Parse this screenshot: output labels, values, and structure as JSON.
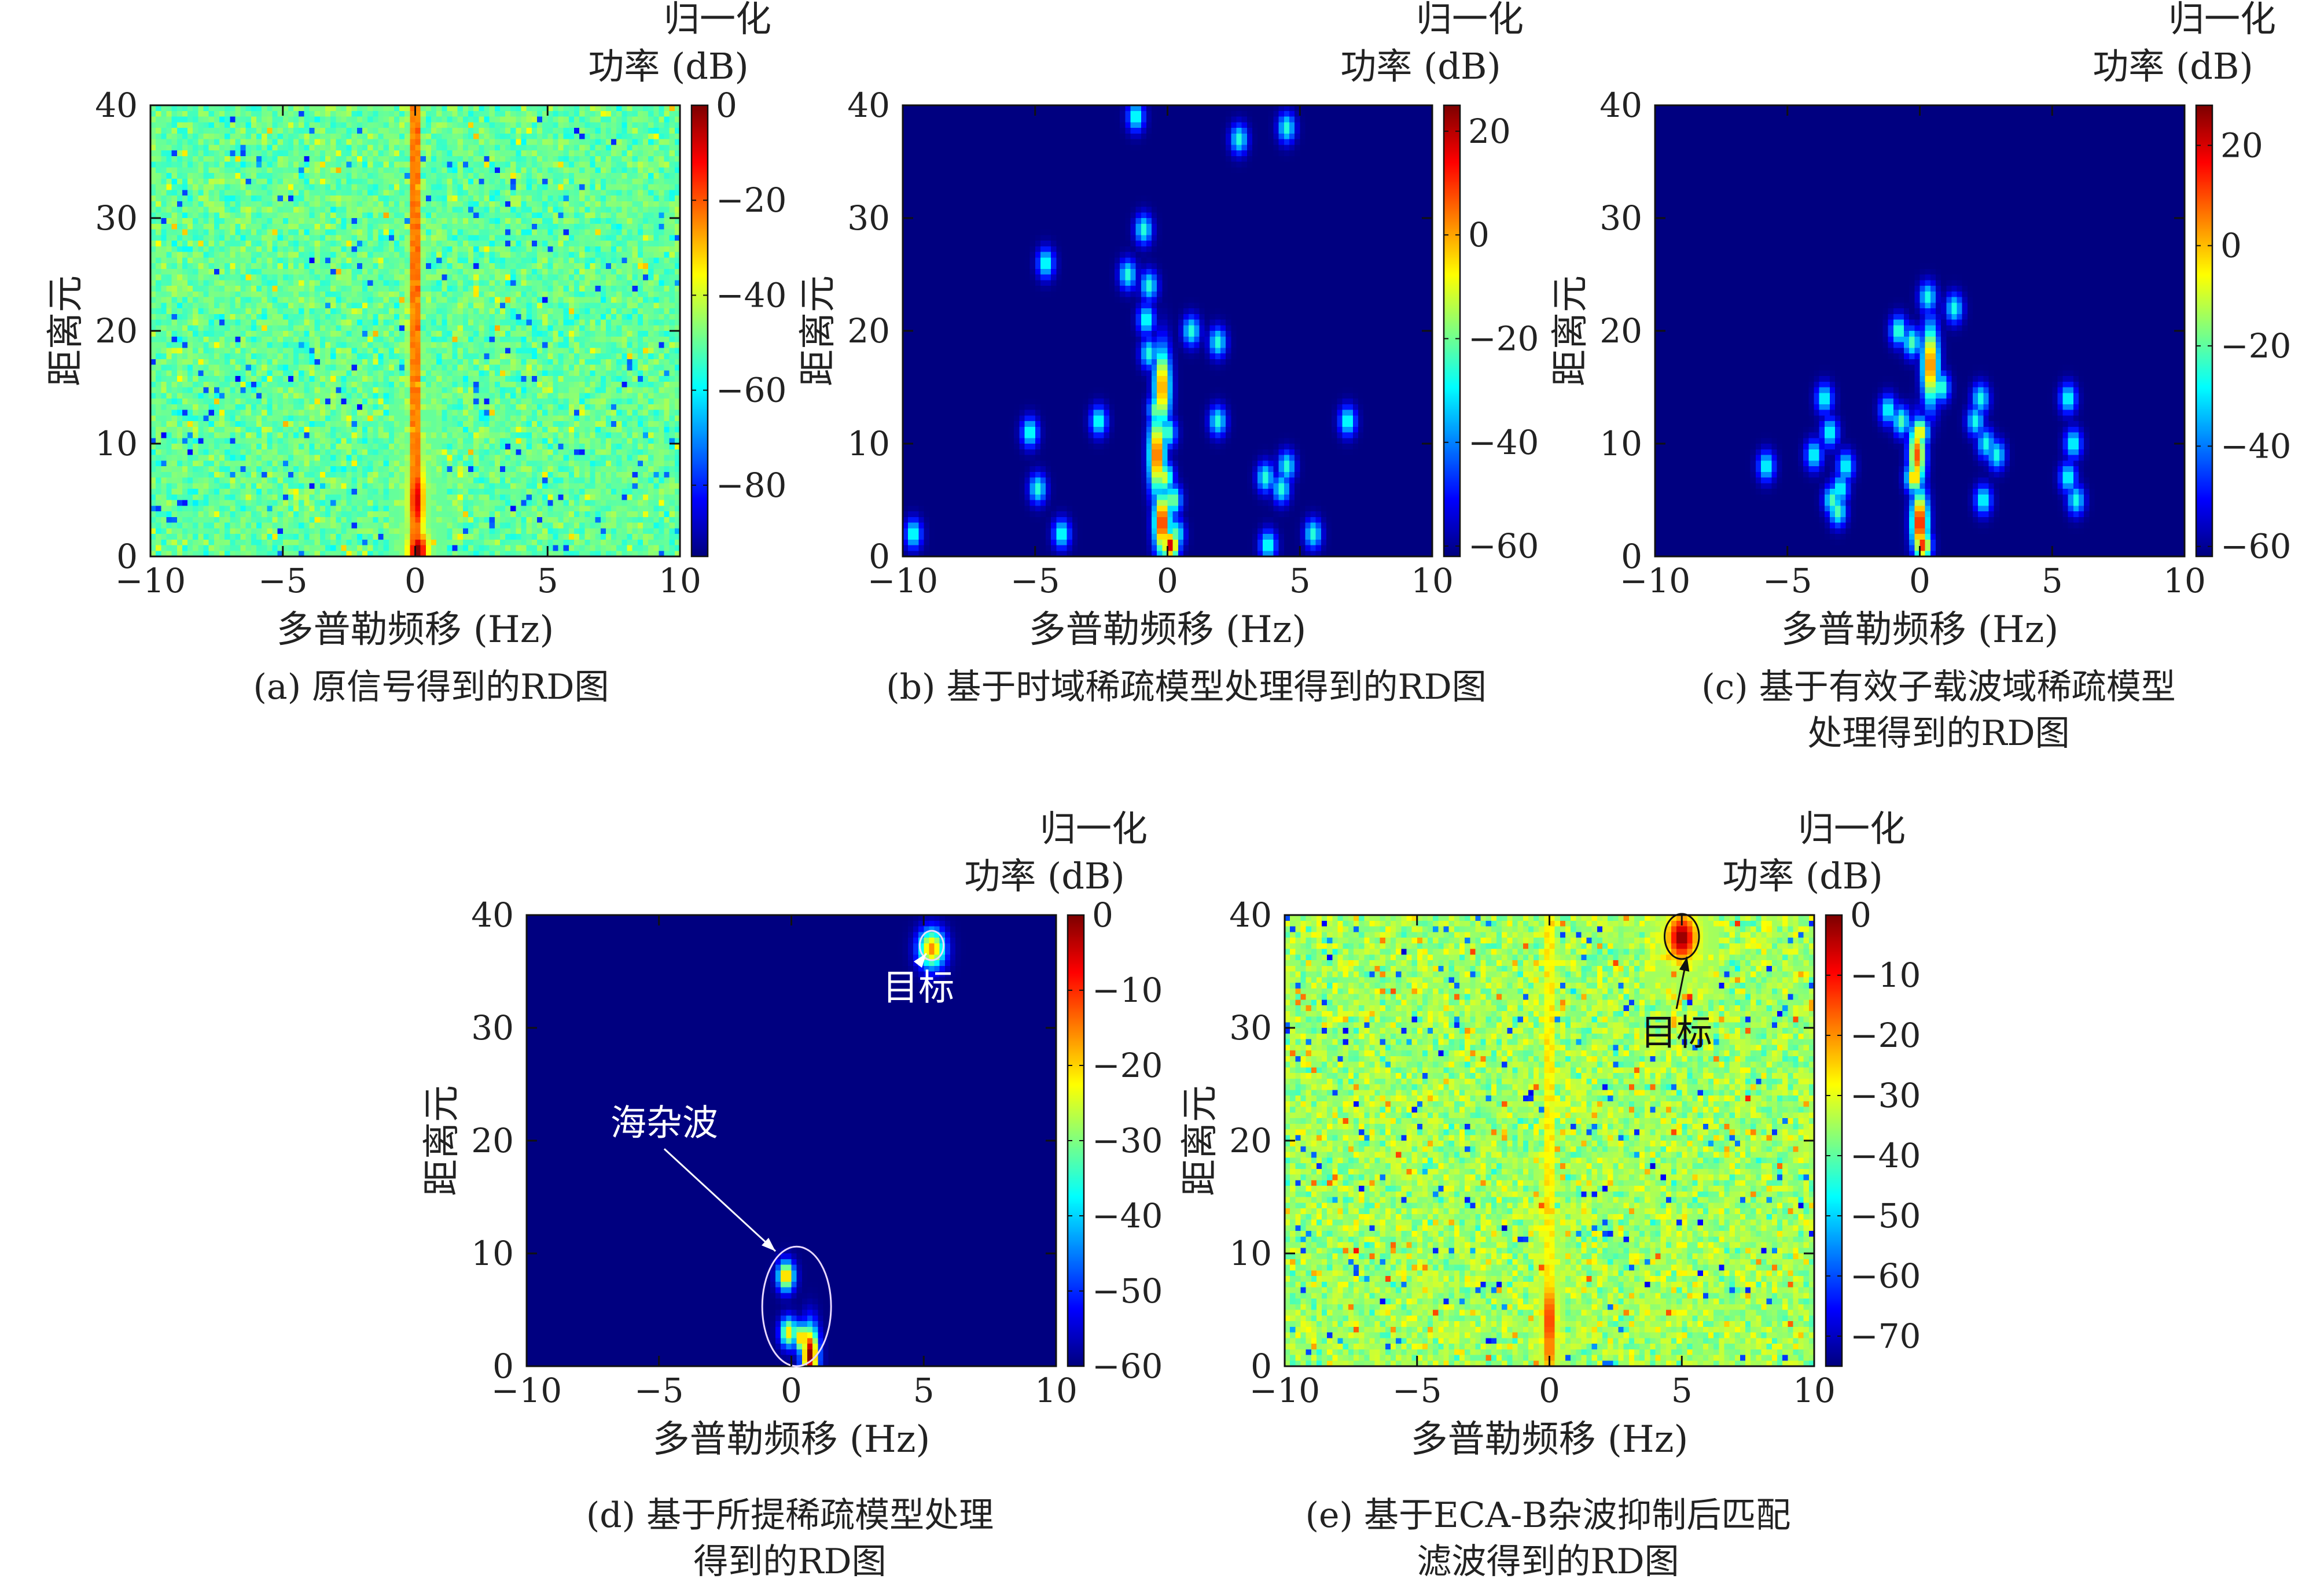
{
  "figure": {
    "panels": [
      {
        "caption_lines": [
          "(a) 原信号得到的RD图"
        ]
      },
      {
        "caption_lines": [
          "(b) 基于时域稀疏模型处理得到的RD图"
        ]
      },
      {
        "caption_lines": [
          "(c) 基于有效子载波域稀疏模型",
          "处理得到的RD图"
        ]
      },
      {
        "caption_lines": [
          "(d) 基于所提稀疏模型处理",
          "得到的RD图"
        ]
      },
      {
        "caption_lines": [
          "(e) 基于ECA-B杂波抑制后匹配",
          "滤波得到的RD图"
        ]
      }
    ]
  },
  "chart_data": [
    {
      "type": "heatmap",
      "xlabel": "多普勒频移 (Hz)",
      "ylabel": "距离元",
      "xlim": [
        -10,
        10
      ],
      "ylim": [
        0,
        40
      ],
      "xticks": [
        -10,
        -5,
        0,
        5,
        10
      ],
      "yticks": [
        0,
        10,
        20,
        30,
        40
      ],
      "colorbar": {
        "title_lines": [
          "归一化",
          "功率 (dB)"
        ],
        "range": [
          -95,
          0
        ],
        "ticks": [
          0,
          -20,
          -40,
          -60,
          -80
        ]
      },
      "background": "noise",
      "noise_level_db": -50,
      "ridge": {
        "doppler_hz": 0.0,
        "level_db": -15
      },
      "peaks": [
        {
          "doppler": 0.1,
          "range": 0.5,
          "level": 0,
          "w": 0.25,
          "h": 1.2
        },
        {
          "doppler": 0.05,
          "range": 5,
          "level": -8,
          "w": 0.2,
          "h": 2.5
        }
      ]
    },
    {
      "type": "heatmap",
      "xlabel": "多普勒频移 (Hz)",
      "ylabel": "距离元",
      "xlim": [
        -10,
        10
      ],
      "ylim": [
        0,
        40
      ],
      "xticks": [
        -10,
        -5,
        0,
        5,
        10
      ],
      "yticks": [
        0,
        10,
        20,
        30,
        40
      ],
      "colorbar": {
        "title_lines": [
          "归一化",
          "功率 (dB)"
        ],
        "range": [
          -62,
          25
        ],
        "ticks": [
          20,
          0,
          -20,
          -40,
          -60
        ]
      },
      "background": "flat",
      "noise_level_db": -62,
      "peaks": [
        {
          "doppler": -1.2,
          "range": 39,
          "level": -25
        },
        {
          "doppler": 2.7,
          "range": 37,
          "level": -25
        },
        {
          "doppler": 4.5,
          "range": 38,
          "level": -25
        },
        {
          "doppler": -0.9,
          "range": 29,
          "level": -25
        },
        {
          "doppler": -4.6,
          "range": 26,
          "level": -25
        },
        {
          "doppler": -1.5,
          "range": 25,
          "level": -25
        },
        {
          "doppler": -0.7,
          "range": 24,
          "level": -25
        },
        {
          "doppler": -0.8,
          "range": 21,
          "level": -25
        },
        {
          "doppler": 0.9,
          "range": 20,
          "level": -25
        },
        {
          "doppler": 1.9,
          "range": 19,
          "level": -25
        },
        {
          "doppler": -0.7,
          "range": 18,
          "level": -25
        },
        {
          "doppler": -0.2,
          "range": 15,
          "level": 5,
          "h": 2.5
        },
        {
          "doppler": -0.4,
          "range": 13,
          "level": -15
        },
        {
          "doppler": -2.6,
          "range": 12,
          "level": -25
        },
        {
          "doppler": -5.2,
          "range": 11,
          "level": -25
        },
        {
          "doppler": 0.0,
          "range": 11,
          "level": -20
        },
        {
          "doppler": 1.9,
          "range": 12,
          "level": -25
        },
        {
          "doppler": 6.8,
          "range": 12,
          "level": -25
        },
        {
          "doppler": -0.4,
          "range": 9,
          "level": 10,
          "h": 2.5
        },
        {
          "doppler": -0.1,
          "range": 7,
          "level": -10
        },
        {
          "doppler": 4.5,
          "range": 8,
          "level": -25
        },
        {
          "doppler": 3.7,
          "range": 7,
          "level": -25
        },
        {
          "doppler": 4.3,
          "range": 6,
          "level": -25
        },
        {
          "doppler": -4.9,
          "range": 6,
          "level": -25
        },
        {
          "doppler": 0.2,
          "range": 5,
          "level": -15
        },
        {
          "doppler": -0.2,
          "range": 3,
          "level": 15,
          "h": 2
        },
        {
          "doppler": 0.3,
          "range": 2,
          "level": -20
        },
        {
          "doppler": 0.1,
          "range": 1,
          "level": 20
        },
        {
          "doppler": -4.0,
          "range": 2,
          "level": -25
        },
        {
          "doppler": 5.5,
          "range": 2,
          "level": -25
        },
        {
          "doppler": 3.8,
          "range": 1,
          "level": -25
        },
        {
          "doppler": -9.6,
          "range": 2,
          "level": -25
        }
      ]
    },
    {
      "type": "heatmap",
      "xlabel": "多普勒频移 (Hz)",
      "ylabel": "距离元",
      "xlim": [
        -10,
        10
      ],
      "ylim": [
        0,
        40
      ],
      "xticks": [
        -10,
        -5,
        0,
        5,
        10
      ],
      "yticks": [
        0,
        10,
        20,
        30,
        40
      ],
      "colorbar": {
        "title_lines": [
          "归一化",
          "功率 (dB)"
        ],
        "range": [
          -62,
          28
        ],
        "ticks": [
          20,
          0,
          -20,
          -40,
          -60
        ]
      },
      "background": "flat",
      "noise_level_db": -62,
      "peaks": [
        {
          "doppler": 0.3,
          "range": 23,
          "level": -25
        },
        {
          "doppler": 1.3,
          "range": 22,
          "level": -25
        },
        {
          "doppler": -0.8,
          "range": 20,
          "level": -20
        },
        {
          "doppler": -0.3,
          "range": 19,
          "level": -20
        },
        {
          "doppler": 0.4,
          "range": 17,
          "level": 10,
          "h": 2.5
        },
        {
          "doppler": 0.8,
          "range": 15,
          "level": -20
        },
        {
          "doppler": -3.6,
          "range": 14,
          "level": -25
        },
        {
          "doppler": 2.3,
          "range": 14,
          "level": -25
        },
        {
          "doppler": 5.6,
          "range": 14,
          "level": -25
        },
        {
          "doppler": -1.2,
          "range": 13,
          "level": -25
        },
        {
          "doppler": -0.7,
          "range": 12,
          "level": -20
        },
        {
          "doppler": 2.1,
          "range": 12,
          "level": -25
        },
        {
          "doppler": -3.4,
          "range": 11,
          "level": -25
        },
        {
          "doppler": 0.0,
          "range": 11,
          "level": 0
        },
        {
          "doppler": 2.5,
          "range": 10,
          "level": -25
        },
        {
          "doppler": 5.8,
          "range": 10,
          "level": -25
        },
        {
          "doppler": -5.8,
          "range": 8,
          "level": -25
        },
        {
          "doppler": -4.0,
          "range": 9,
          "level": -25
        },
        {
          "doppler": -0.1,
          "range": 9,
          "level": 10,
          "h": 2
        },
        {
          "doppler": 2.9,
          "range": 9,
          "level": -25
        },
        {
          "doppler": -2.8,
          "range": 8,
          "level": -25
        },
        {
          "doppler": -0.2,
          "range": 7,
          "level": 5
        },
        {
          "doppler": 5.6,
          "range": 7,
          "level": -25
        },
        {
          "doppler": -3.0,
          "range": 6,
          "level": -25
        },
        {
          "doppler": -3.3,
          "range": 5,
          "level": -20
        },
        {
          "doppler": 2.4,
          "range": 5,
          "level": -25
        },
        {
          "doppler": 5.9,
          "range": 5,
          "level": -25
        },
        {
          "doppler": -3.1,
          "range": 4,
          "level": -20
        },
        {
          "doppler": 0.0,
          "range": 3,
          "level": 20,
          "h": 2
        },
        {
          "doppler": 0.1,
          "range": 1,
          "level": 15
        }
      ]
    },
    {
      "type": "heatmap",
      "xlabel": "多普勒频移 (Hz)",
      "ylabel": "距离元",
      "xlim": [
        -10,
        10
      ],
      "ylim": [
        0,
        40
      ],
      "xticks": [
        -10,
        -5,
        0,
        5,
        10
      ],
      "yticks": [
        0,
        10,
        20,
        30,
        40
      ],
      "colorbar": {
        "title_lines": [
          "归一化",
          "功率 (dB)"
        ],
        "range": [
          -60,
          0
        ],
        "ticks": [
          0,
          -10,
          -20,
          -30,
          -40,
          -50,
          -60
        ]
      },
      "background": "flat",
      "noise_level_db": -60,
      "peaks": [
        {
          "doppler": 5.3,
          "range": 37,
          "level": -15,
          "w": 0.35,
          "h": 1.2
        },
        {
          "doppler": -0.2,
          "range": 8,
          "level": -15
        },
        {
          "doppler": -0.1,
          "range": 3,
          "level": -20
        },
        {
          "doppler": 0.4,
          "range": 2.5,
          "level": -15
        },
        {
          "doppler": 0.7,
          "range": 1,
          "level": 0,
          "h": 1.8
        }
      ],
      "annotations": [
        {
          "text": "目标",
          "x": 4.8,
          "y": 32.5,
          "arrow_to": [
            5.1,
            36.6
          ]
        },
        {
          "text": "海杂波",
          "x": -4.8,
          "y": 20.5,
          "arrow_to": [
            -0.6,
            10.2
          ]
        }
      ],
      "circles": [
        {
          "cx": 5.3,
          "cy": 37.3,
          "rx": 0.45,
          "ry": 1.3
        },
        {
          "cx": 0.2,
          "cy": 5.3,
          "rx": 1.3,
          "ry": 5.3
        }
      ]
    },
    {
      "type": "heatmap",
      "xlabel": "多普勒频移 (Hz)",
      "ylabel": "距离元",
      "xlim": [
        -10,
        10
      ],
      "ylim": [
        0,
        40
      ],
      "xticks": [
        -10,
        -5,
        0,
        5,
        10
      ],
      "yticks": [
        0,
        10,
        20,
        30,
        40
      ],
      "colorbar": {
        "title_lines": [
          "归一化",
          "功率 (dB)"
        ],
        "range": [
          -75,
          0
        ],
        "ticks": [
          0,
          -10,
          -20,
          -30,
          -40,
          -50,
          -60,
          -70
        ]
      },
      "background": "noise",
      "noise_level_db": -35,
      "ridge": {
        "doppler_hz": 0.0,
        "level_db": -25
      },
      "peaks": [
        {
          "doppler": 5.0,
          "range": 38,
          "level": 0,
          "w": 0.35,
          "h": 1.3
        },
        {
          "doppler": 0.0,
          "range": 4,
          "level": -10,
          "w": 0.15,
          "h": 2.5
        },
        {
          "doppler": 0.0,
          "range": 1.5,
          "level": -15,
          "w": 0.15,
          "h": 1.5
        }
      ],
      "annotations": [
        {
          "text": "目标",
          "x": 4.8,
          "y": 28.5,
          "arrow_to": [
            5.2,
            36.3
          ]
        }
      ],
      "circles": [
        {
          "cx": 5.0,
          "cy": 38.1,
          "rx": 0.65,
          "ry": 2.0
        }
      ]
    }
  ]
}
